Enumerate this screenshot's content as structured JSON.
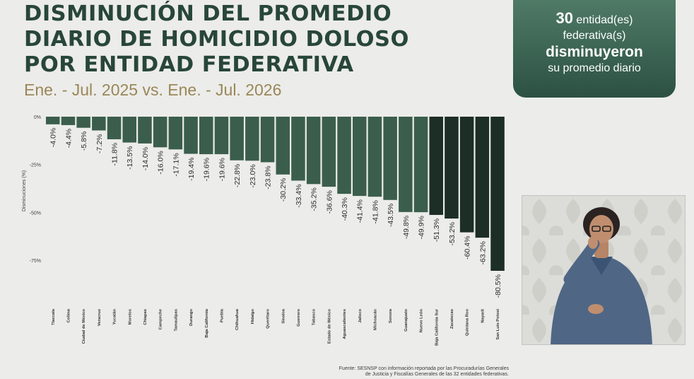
{
  "title_lines": [
    "DISMINUCIÓN DEL PROMEDIO",
    "DIARIO DE HOMICIDIO DOLOSO",
    "POR ENTIDAD FEDERATIVA"
  ],
  "subtitle": "Ene. - Jul. 2025 vs. Ene. - Jul. 2026",
  "summary_card": {
    "count": "30",
    "line1_rest": " entidad(es)",
    "line2": "federativa(s)",
    "line3": "disminuyeron",
    "line4": "su promedio diario"
  },
  "source_note": {
    "line1": "Fuente: SESNSP con información reportada por las Procuradurías Generales",
    "line2": "de Justicia y Fiscalías Generales de las 32 entidades federativas."
  },
  "colors": {
    "bar_light": "#3b5e4c",
    "bar_dark": "#1c2e25",
    "title": "#28463a",
    "subtitle": "#9a8757"
  },
  "chart_data": {
    "type": "bar",
    "ylabel": "Disminuciones (%)",
    "ylim": [
      -80.5,
      0
    ],
    "yticks": [
      0,
      -25,
      -50,
      -75
    ],
    "ytick_labels": [
      "0%",
      "-25%",
      "-50%",
      "-75%"
    ],
    "categories": [
      "Tlaxcala",
      "Colima",
      "Ciudad de México",
      "Veracruz",
      "Yucatán",
      "Morelos",
      "Chiapas",
      "Campeche",
      "Tamaulipas",
      "Durango",
      "Baja California",
      "Puebla",
      "Chihuahua",
      "Hidalgo",
      "Querétaro",
      "Sinaloa",
      "Guerrero",
      "Tabasco",
      "Estado de México",
      "Aguascalientes",
      "Jalisco",
      "Michoacán",
      "Sonora",
      "Guanajuato",
      "Nuevo León",
      "Baja California Sur",
      "Zacatecas",
      "Quintana Roo",
      "Nayarit",
      "San Luis Potosí"
    ],
    "values": [
      -4.0,
      -4.4,
      -5.8,
      -7.2,
      -11.8,
      -13.5,
      -14.0,
      -16.0,
      -17.1,
      -19.4,
      -19.6,
      -19.6,
      -22.8,
      -23.0,
      -23.8,
      -30.2,
      -33.4,
      -35.2,
      -36.6,
      -40.3,
      -41.4,
      -41.8,
      -43.5,
      -49.8,
      -49.9,
      -51.3,
      -53.2,
      -60.4,
      -63.2,
      -80.5
    ],
    "data_labels": [
      "-4.0%",
      "-4.4%",
      "-5.8%",
      "-7.2%",
      "-11.8%",
      "-13.5%",
      "-14.0%",
      "-16.0%",
      "-17.1%",
      "-19.4%",
      "-19.6%",
      "-19.6%",
      "-22.8%",
      "-23.0%",
      "-23.8%",
      "-30.2%",
      "-33.4%",
      "-35.2%",
      "-36.6%",
      "-40.3%",
      "-41.4%",
      "-41.8%",
      "-43.5%",
      "-49.8%",
      "-49.9%",
      "-51.3%",
      "-53.2%",
      "-60.4%",
      "-63.2%",
      "-80.5%"
    ]
  }
}
